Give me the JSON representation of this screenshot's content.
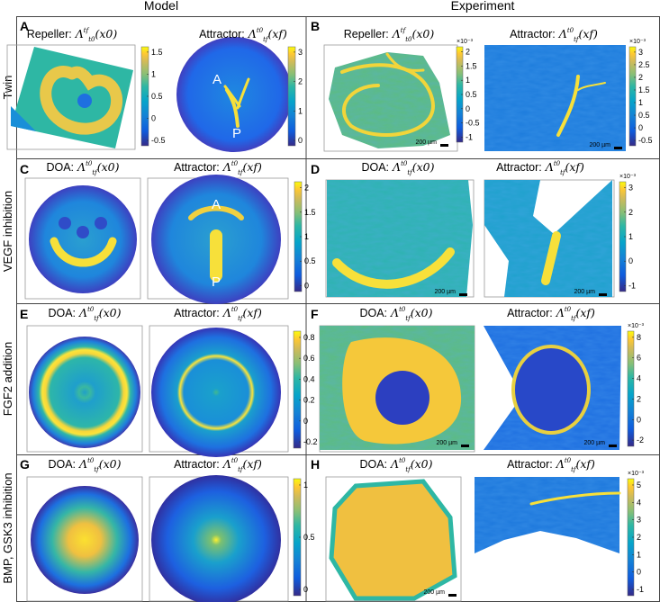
{
  "header": {
    "columns": [
      "Model",
      "Experiment"
    ]
  },
  "rows": [
    {
      "label": "Twin"
    },
    {
      "label": "VEGF inhibition"
    },
    {
      "label": "FGF2 addition"
    },
    {
      "label": "BMP, GSK3 inhibition"
    }
  ],
  "panels": [
    {
      "letter": "A",
      "images": [
        {
          "title": "Repeller:",
          "math": {
            "symbol": "Λ",
            "sup": "tf",
            "sub": "t0",
            "arg": "(x0)"
          },
          "colorbar": {
            "ticks": [
              1.5,
              1,
              0.5,
              0,
              -0.5
            ]
          }
        },
        {
          "title": "Attractor:",
          "math": {
            "symbol": "Λ",
            "sup": "t0",
            "sub": "tf",
            "arg": "(xf)"
          },
          "colorbar": {
            "ticks": [
              3,
              2,
              1,
              0
            ]
          },
          "annotations": [
            "A",
            "P"
          ]
        }
      ]
    },
    {
      "letter": "B",
      "images": [
        {
          "title": "Repeller:",
          "math": {
            "symbol": "Λ",
            "sup": "tf",
            "sub": "t0",
            "arg": "(x0)"
          },
          "colorbar": {
            "exponent": "×10⁻³",
            "ticks": [
              2,
              1.5,
              1,
              0.5,
              0,
              -0.5,
              -1
            ]
          },
          "scale_bar": "200 µm"
        },
        {
          "title": "Attractor:",
          "math": {
            "symbol": "Λ",
            "sup": "t0",
            "sub": "tf",
            "arg": "(xf)"
          },
          "colorbar": {
            "exponent": "×10⁻³",
            "ticks": [
              3,
              2.5,
              2,
              1.5,
              1,
              0.5,
              0,
              -0.5
            ]
          },
          "scale_bar": "200 µm"
        }
      ]
    },
    {
      "letter": "C",
      "images": [
        {
          "title": "DOA:",
          "math": {
            "symbol": "Λ",
            "sup": "t0",
            "sub": "tf",
            "arg": "(x0)"
          }
        },
        {
          "title": "Attractor:",
          "math": {
            "symbol": "Λ",
            "sup": "t0",
            "sub": "tf",
            "arg": "(xf)"
          },
          "colorbar": {
            "ticks": [
              2,
              1.5,
              1,
              0.5,
              0
            ]
          },
          "annotations": [
            "A",
            "P"
          ]
        }
      ]
    },
    {
      "letter": "D",
      "images": [
        {
          "title": "DOA:",
          "math": {
            "symbol": "Λ",
            "sup": "t0",
            "sub": "tf",
            "arg": "(x0)"
          },
          "scale_bar": "200 µm"
        },
        {
          "title": "Attractor:",
          "math": {
            "symbol": "Λ",
            "sup": "t0",
            "sub": "tf",
            "arg": "(xf)"
          },
          "colorbar": {
            "exponent": "×10⁻³",
            "ticks": [
              3,
              2,
              1,
              0,
              -1
            ]
          },
          "scale_bar": "200 µm"
        }
      ]
    },
    {
      "letter": "E",
      "images": [
        {
          "title": "DOA:",
          "math": {
            "symbol": "Λ",
            "sup": "t0",
            "sub": "tf",
            "arg": "(x0)"
          }
        },
        {
          "title": "Attractor:",
          "math": {
            "symbol": "Λ",
            "sup": "t0",
            "sub": "tf",
            "arg": "(xf)"
          },
          "colorbar": {
            "ticks": [
              0.8,
              0.6,
              0.4,
              0.2,
              0,
              -0.2
            ]
          }
        }
      ]
    },
    {
      "letter": "F",
      "images": [
        {
          "title": "DOA:",
          "math": {
            "symbol": "Λ",
            "sup": "t0",
            "sub": "tf",
            "arg": "(x0)"
          },
          "scale_bar": "200 µm"
        },
        {
          "title": "Attractor:",
          "math": {
            "symbol": "Λ",
            "sup": "t0",
            "sub": "tf",
            "arg": "(xf)"
          },
          "colorbar": {
            "exponent": "×10⁻³",
            "ticks": [
              8,
              6,
              4,
              2,
              0,
              -2
            ]
          },
          "scale_bar": "200 µm"
        }
      ]
    },
    {
      "letter": "G",
      "images": [
        {
          "title": "DOA:",
          "math": {
            "symbol": "Λ",
            "sup": "t0",
            "sub": "tf",
            "arg": "(x0)"
          }
        },
        {
          "title": "Attractor:",
          "math": {
            "symbol": "Λ",
            "sup": "t0",
            "sub": "tf",
            "arg": "(xf)"
          },
          "colorbar": {
            "ticks": [
              1,
              0.5,
              0
            ]
          }
        }
      ]
    },
    {
      "letter": "H",
      "images": [
        {
          "title": "DOA:",
          "math": {
            "symbol": "Λ",
            "sup": "t0",
            "sub": "tf",
            "arg": "(x0)"
          },
          "scale_bar": "200 µm"
        },
        {
          "title": "Attractor:",
          "math": {
            "symbol": "Λ",
            "sup": "t0",
            "sub": "tf",
            "arg": "(xf)"
          },
          "colorbar": {
            "exponent": "×10⁻³",
            "ticks": [
              5,
              4,
              3,
              2,
              1,
              0,
              -1
            ]
          }
        }
      ]
    }
  ]
}
